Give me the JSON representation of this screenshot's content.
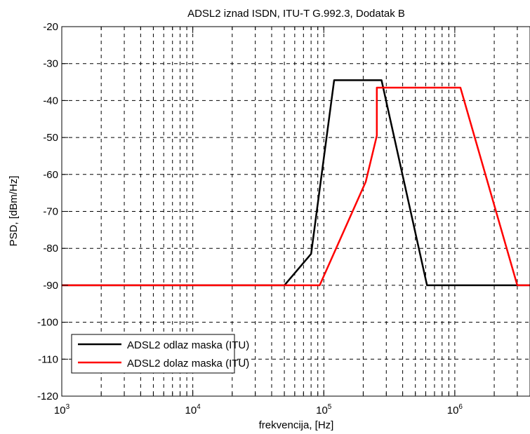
{
  "chart_data": {
    "type": "line",
    "title": "ADSL2 iznad ISDN, ITU-T G.992.3, Dodatak B",
    "xlabel": "frekvencija, [Hz]",
    "ylabel": "PSD, [dBm/Hz]",
    "xscale": "log",
    "xlim": [
      1000,
      3750000
    ],
    "ylim": [
      -120,
      -20
    ],
    "grid": true,
    "legend_position": "bottom-left",
    "x_ticks": [
      {
        "value": 1000,
        "base": "10",
        "exp": "3"
      },
      {
        "value": 10000,
        "base": "10",
        "exp": "4"
      },
      {
        "value": 100000,
        "base": "10",
        "exp": "5"
      },
      {
        "value": 1000000,
        "base": "10",
        "exp": "6"
      }
    ],
    "y_ticks": [
      "-20",
      "-30",
      "-40",
      "-50",
      "-60",
      "-70",
      "-80",
      "-90",
      "-100",
      "-110",
      "-120"
    ],
    "series": [
      {
        "name": "ADSL2 odlaz maska (ITU)",
        "color": "#000000",
        "points": [
          [
            1000,
            -90
          ],
          [
            50000,
            -90
          ],
          [
            80000,
            -81.5
          ],
          [
            120000,
            -34.5
          ],
          [
            276000,
            -34.5
          ],
          [
            614000,
            -90
          ],
          [
            3750000,
            -90
          ]
        ]
      },
      {
        "name": "ADSL2 dolaz maska (ITU)",
        "color": "#ff0000",
        "points": [
          [
            1000,
            -90
          ],
          [
            93000,
            -90
          ],
          [
            209000,
            -62
          ],
          [
            254000,
            -49.5
          ],
          [
            254000,
            -36.5
          ],
          [
            1104000,
            -36.5
          ],
          [
            3000000,
            -90
          ],
          [
            3750000,
            -90
          ]
        ]
      }
    ]
  }
}
